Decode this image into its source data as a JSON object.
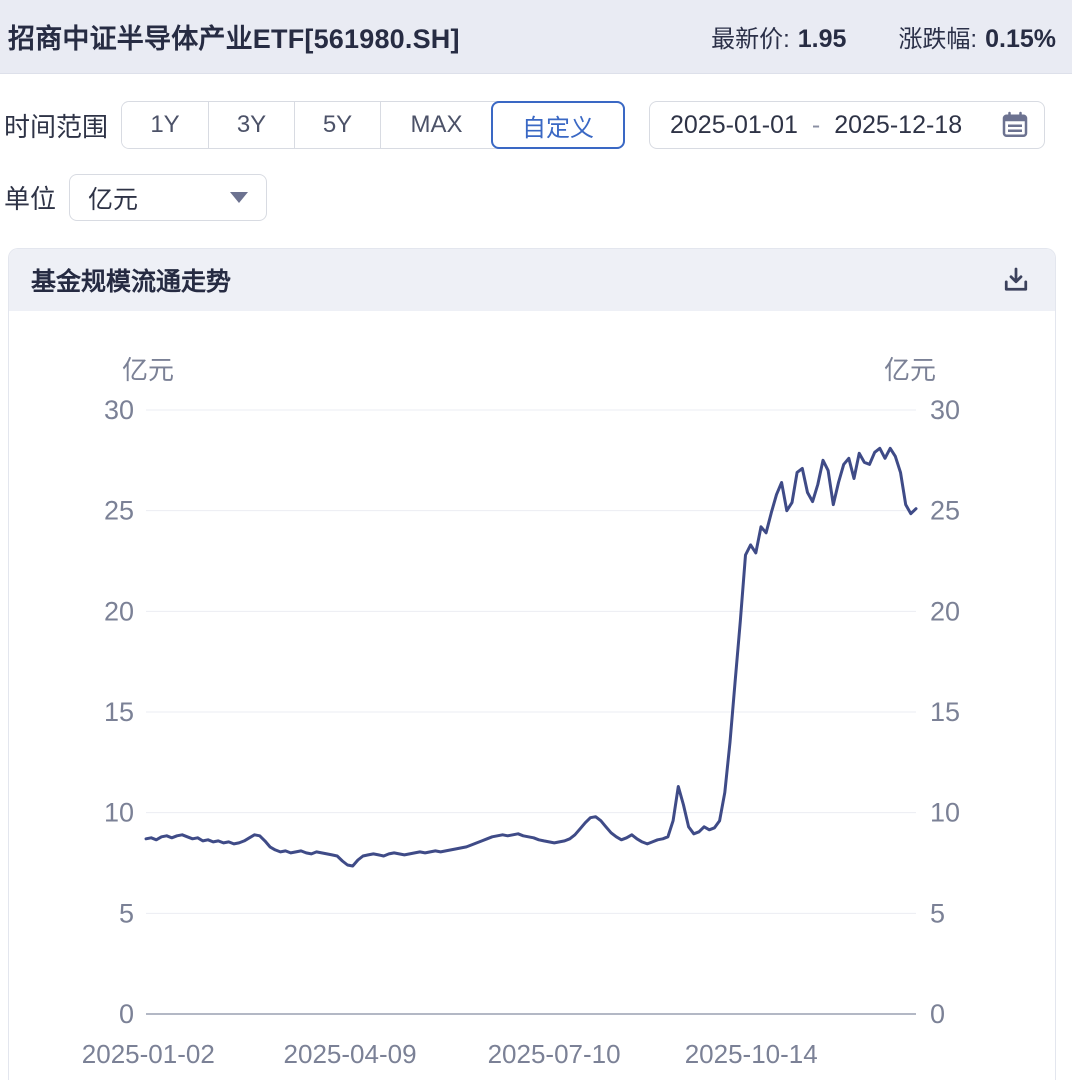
{
  "header": {
    "title": "招商中证半导体产业ETF[561980.SH]",
    "latest_price_label": "最新价:",
    "latest_price": "1.95",
    "change_label": "涨跌幅:",
    "change_percent": "0.15%"
  },
  "toolbar": {
    "time_range_label": "时间范围",
    "ranges": [
      {
        "label": "1Y",
        "selected": false
      },
      {
        "label": "3Y",
        "selected": false
      },
      {
        "label": "5Y",
        "selected": false
      },
      {
        "label": "MAX",
        "selected": false
      },
      {
        "label": "自定义",
        "selected": true
      }
    ],
    "date_start": "2025-01-01",
    "date_separator": "-",
    "date_end": "2025-12-18",
    "unit_label": "单位",
    "unit_value": "亿元"
  },
  "panel": {
    "title": "基金规模流通走势"
  },
  "theme": {
    "accent_blue": "#3A68C4",
    "header_band": "#E9EBF3",
    "panel_header": "#EEF0F6"
  },
  "chart_data": {
    "type": "line",
    "title": "基金规模流通走势",
    "unit_label_left": "亿元",
    "unit_label_right": "亿元",
    "ylim": [
      0,
      30
    ],
    "y_ticks": [
      0,
      5,
      10,
      15,
      20,
      25,
      30
    ],
    "x_ticks": [
      {
        "label": "2025-01-02",
        "pos": 0.003
      },
      {
        "label": "2025-04-09",
        "pos": 0.265
      },
      {
        "label": "2025-07-10",
        "pos": 0.53
      },
      {
        "label": "2025-10-14",
        "pos": 0.786
      }
    ],
    "x_range": [
      "2025-01-02",
      "2025-12-18"
    ],
    "grid": true,
    "legend_position": "none",
    "line_color": "#3F4B87",
    "grid_color": "#EBEDF3",
    "axis_line_color": "#9AA0B2",
    "tick_color": "#7B8196",
    "values": [
      8.7,
      8.75,
      8.65,
      8.8,
      8.85,
      8.75,
      8.85,
      8.9,
      8.8,
      8.7,
      8.75,
      8.6,
      8.65,
      8.55,
      8.6,
      8.5,
      8.55,
      8.45,
      8.5,
      8.6,
      8.75,
      8.9,
      8.85,
      8.6,
      8.3,
      8.15,
      8.05,
      8.1,
      8.0,
      8.05,
      8.1,
      8.0,
      7.95,
      8.05,
      8.0,
      7.95,
      7.9,
      7.85,
      7.6,
      7.4,
      7.35,
      7.65,
      7.85,
      7.9,
      7.95,
      7.9,
      7.85,
      7.95,
      8.0,
      7.95,
      7.9,
      7.95,
      8.0,
      8.05,
      8.0,
      8.05,
      8.1,
      8.05,
      8.1,
      8.15,
      8.2,
      8.25,
      8.3,
      8.4,
      8.5,
      8.6,
      8.7,
      8.8,
      8.85,
      8.9,
      8.85,
      8.9,
      8.95,
      8.85,
      8.8,
      8.75,
      8.65,
      8.6,
      8.55,
      8.5,
      8.55,
      8.6,
      8.7,
      8.9,
      9.2,
      9.5,
      9.75,
      9.8,
      9.6,
      9.3,
      9.0,
      8.8,
      8.65,
      8.75,
      8.9,
      8.7,
      8.55,
      8.45,
      8.55,
      8.65,
      8.7,
      8.8,
      9.6,
      11.3,
      10.4,
      9.3,
      8.95,
      9.05,
      9.3,
      9.15,
      9.25,
      9.6,
      11.0,
      13.5,
      16.5,
      19.5,
      22.8,
      23.3,
      22.9,
      24.2,
      23.9,
      24.9,
      25.8,
      26.4,
      25.0,
      25.4,
      26.9,
      27.1,
      25.9,
      25.45,
      26.3,
      27.5,
      27.0,
      25.3,
      26.4,
      27.3,
      27.6,
      26.6,
      27.85,
      27.4,
      27.3,
      27.9,
      28.1,
      27.6,
      28.1,
      27.7,
      26.9,
      25.3,
      24.85,
      25.1
    ]
  }
}
